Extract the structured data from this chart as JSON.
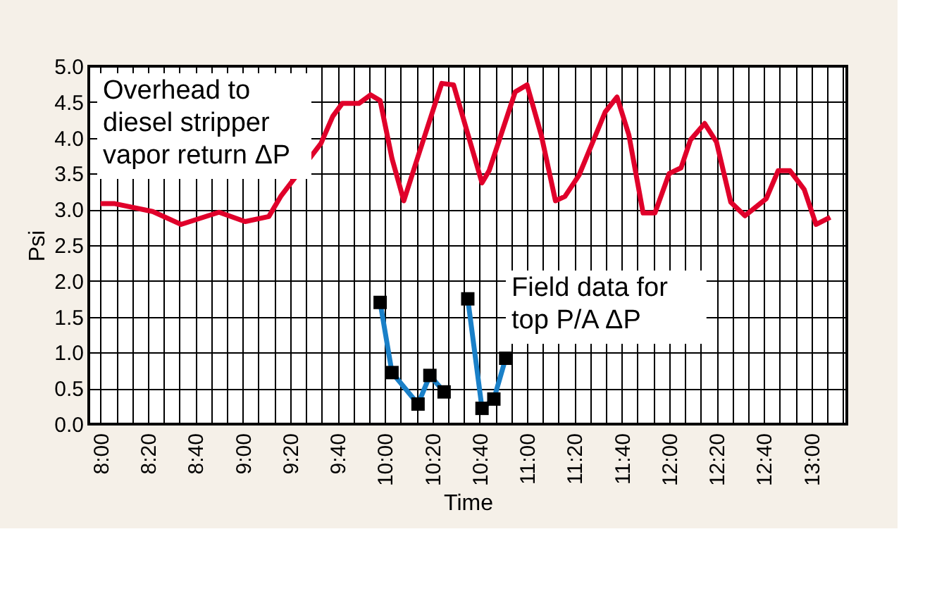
{
  "chart_data": {
    "type": "line",
    "xlabel": "Time",
    "ylabel": "Psi",
    "annotations": [
      "Overhead to\ndiesel stripper\nvapor return ΔP",
      "Field data for\ntop P/A ΔP"
    ],
    "series": [
      {
        "color": "#e0002a",
        "marker": "none",
        "x": [
          8.0,
          8.1,
          8.3667,
          8.5667,
          8.8333,
          9.0167,
          9.1833,
          9.2667,
          9.55,
          9.6333,
          9.7,
          9.8167,
          9.9,
          9.9667,
          10.05,
          10.1333,
          10.2333,
          10.4,
          10.4833,
          10.6833,
          10.7333,
          10.9167,
          11.0,
          11.1,
          11.2,
          11.2667,
          11.3667,
          11.55,
          11.6333,
          11.7167,
          11.8167,
          11.9,
          12.0,
          12.0833,
          12.15,
          12.25,
          12.3333,
          12.4333,
          12.5333,
          12.6833,
          12.7667,
          12.85,
          12.95,
          13.0333,
          13.1333
        ],
        "values": [
          3.08,
          3.08,
          2.97,
          2.79,
          2.96,
          2.83,
          2.9,
          3.18,
          3.92,
          4.3,
          4.48,
          4.48,
          4.6,
          4.52,
          3.71,
          3.12,
          3.74,
          4.76,
          4.74,
          3.37,
          3.54,
          4.64,
          4.74,
          4.04,
          3.12,
          3.18,
          3.48,
          4.36,
          4.57,
          4.04,
          2.95,
          2.95,
          3.5,
          3.58,
          3.97,
          4.2,
          3.94,
          3.1,
          2.91,
          3.15,
          3.54,
          3.54,
          3.28,
          2.79,
          2.89
        ]
      },
      {
        "color": "#1a80c8",
        "marker": "square",
        "x": [
          9.9667,
          10.05,
          10.2333,
          10.3167,
          10.4167
        ],
        "values": [
          1.7,
          0.72,
          0.28,
          0.68,
          0.45
        ]
      },
      {
        "color": "#1a80c8",
        "marker": "square",
        "x": [
          10.5833,
          10.6833,
          10.7667,
          10.85
        ],
        "values": [
          1.75,
          0.22,
          0.35,
          0.92
        ]
      }
    ],
    "xlim": [
      7.9167,
      13.25
    ],
    "xticks": [
      {
        "value": 8.0,
        "label": "8:00"
      },
      {
        "value": 8.1111,
        "label": null
      },
      {
        "value": 8.2222,
        "label": null
      },
      {
        "value": 8.3333,
        "label": "8:20"
      },
      {
        "value": 8.4444,
        "label": null
      },
      {
        "value": 8.5556,
        "label": null
      },
      {
        "value": 8.6667,
        "label": "8:40"
      },
      {
        "value": 8.7778,
        "label": null
      },
      {
        "value": 8.8889,
        "label": null
      },
      {
        "value": 9.0,
        "label": "9:00"
      },
      {
        "value": 9.1111,
        "label": null
      },
      {
        "value": 9.2222,
        "label": null
      },
      {
        "value": 9.3333,
        "label": "9:20"
      },
      {
        "value": 9.4444,
        "label": null
      },
      {
        "value": 9.5556,
        "label": null
      },
      {
        "value": 9.6667,
        "label": "9:40"
      },
      {
        "value": 9.7778,
        "label": null
      },
      {
        "value": 9.8889,
        "label": null
      },
      {
        "value": 10.0,
        "label": "10:00"
      },
      {
        "value": 10.1111,
        "label": null
      },
      {
        "value": 10.2222,
        "label": null
      },
      {
        "value": 10.3333,
        "label": "10:20"
      },
      {
        "value": 10.4444,
        "label": null
      },
      {
        "value": 10.5556,
        "label": null
      },
      {
        "value": 10.6667,
        "label": "10:40"
      },
      {
        "value": 10.7778,
        "label": null
      },
      {
        "value": 10.8889,
        "label": null
      },
      {
        "value": 11.0,
        "label": "11:00"
      },
      {
        "value": 11.1111,
        "label": null
      },
      {
        "value": 11.2222,
        "label": null
      },
      {
        "value": 11.3333,
        "label": "11:20"
      },
      {
        "value": 11.4444,
        "label": null
      },
      {
        "value": 11.5556,
        "label": null
      },
      {
        "value": 11.6667,
        "label": "11:40"
      },
      {
        "value": 11.7778,
        "label": null
      },
      {
        "value": 11.8889,
        "label": null
      },
      {
        "value": 12.0,
        "label": "12:00"
      },
      {
        "value": 12.1111,
        "label": null
      },
      {
        "value": 12.2222,
        "label": null
      },
      {
        "value": 12.3333,
        "label": "12:20"
      },
      {
        "value": 12.4444,
        "label": null
      },
      {
        "value": 12.5556,
        "label": null
      },
      {
        "value": 12.6667,
        "label": "12:40"
      },
      {
        "value": 12.7778,
        "label": null
      },
      {
        "value": 12.8889,
        "label": null
      },
      {
        "value": 13.0,
        "label": "13:00"
      },
      {
        "value": 13.1111,
        "label": null
      },
      {
        "value": 13.2222,
        "label": null
      }
    ],
    "ylim": [
      0,
      5
    ],
    "yticks": [
      {
        "value": 0,
        "label": "0.0"
      },
      {
        "value": 0.5,
        "label": "0.5"
      },
      {
        "value": 1,
        "label": "1.0"
      },
      {
        "value": 1.5,
        "label": "1.5"
      },
      {
        "value": 2,
        "label": "2.0"
      },
      {
        "value": 2.5,
        "label": "2.5"
      },
      {
        "value": 3,
        "label": "3.0"
      },
      {
        "value": 3.5,
        "label": "3.5"
      },
      {
        "value": 4,
        "label": "4.0"
      },
      {
        "value": 4.5,
        "label": "4.5"
      },
      {
        "value": 5,
        "label": "5.0"
      }
    ],
    "grid": true,
    "legend": false,
    "line_style": "solid"
  }
}
